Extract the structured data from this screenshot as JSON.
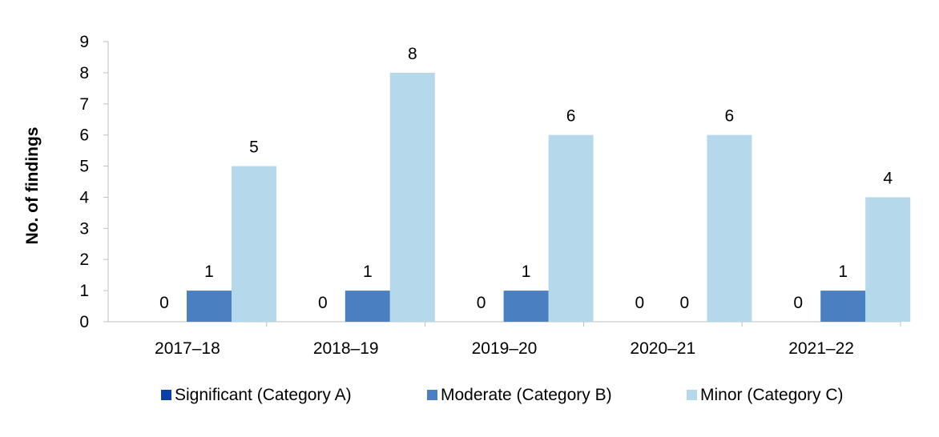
{
  "chart_data": {
    "type": "bar",
    "ylabel": "No. of findings",
    "xlabel": "",
    "ylim": [
      0,
      9
    ],
    "yticks": [
      0,
      1,
      2,
      3,
      4,
      5,
      6,
      7,
      8,
      9
    ],
    "categories": [
      "2017–18",
      "2018–19",
      "2019–20",
      "2020–21",
      "2021–22"
    ],
    "series": [
      {
        "name": "Significant (Category A)",
        "color": "#0a3ea8",
        "values": [
          0,
          0,
          0,
          0,
          0
        ]
      },
      {
        "name": "Moderate (Category B)",
        "color": "#4a7fc1",
        "values": [
          1,
          1,
          1,
          0,
          1
        ]
      },
      {
        "name": "Minor (Category C)",
        "color": "#b5d8eb",
        "values": [
          5,
          8,
          6,
          6,
          4
        ]
      }
    ],
    "data_labels": true,
    "grid": false,
    "legend_position": "bottom"
  }
}
